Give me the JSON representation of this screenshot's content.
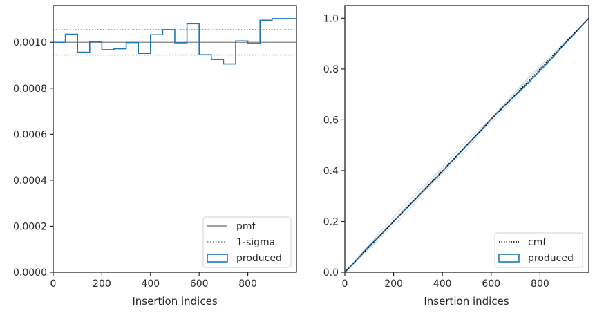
{
  "chart_data": [
    {
      "type": "histogram",
      "xlabel": "Insertion indices",
      "ylabel": "",
      "xlim": [
        0,
        1000
      ],
      "ylim": [
        0,
        0.00116
      ],
      "xticks": [
        "0",
        "200",
        "400",
        "600",
        "800"
      ],
      "yticks": [
        "0.0000",
        "0.0002",
        "0.0004",
        "0.0006",
        "0.0008",
        "0.0010"
      ],
      "bin_edges": [
        0,
        50,
        100,
        150,
        200,
        250,
        300,
        350,
        400,
        450,
        500,
        550,
        600,
        650,
        700,
        750,
        800,
        850,
        900,
        950,
        1000
      ],
      "produced": [
        0.001,
        0.001035,
        0.000957,
        0.001002,
        0.000968,
        0.000972,
        0.000999,
        0.000952,
        0.001033,
        0.001055,
        0.000998,
        0.001081,
        0.000946,
        0.000925,
        0.000906,
        0.001006,
        0.000995,
        0.001096,
        0.001103,
        0.001103
      ],
      "pmf": 0.001,
      "sigma_upper": 0.001055,
      "sigma_lower": 0.000945,
      "legend": [
        "pmf",
        "1-sigma",
        "produced"
      ],
      "legend_position": "lower right",
      "colors": {
        "pmf": "#808080",
        "sigma": "#808080",
        "produced": "#1f77b4"
      }
    },
    {
      "type": "line",
      "xlabel": "Insertion indices",
      "ylabel": "",
      "xlim": [
        0,
        1000
      ],
      "ylim": [
        0,
        1.05
      ],
      "xticks": [
        "0",
        "200",
        "400",
        "600",
        "800"
      ],
      "yticks": [
        "0.0",
        "0.2",
        "0.4",
        "0.6",
        "0.8",
        "1.0"
      ],
      "cmf": {
        "x": [
          0,
          1000
        ],
        "y": [
          0,
          1.0
        ]
      },
      "produced": {
        "x": [
          0,
          50,
          100,
          150,
          200,
          250,
          300,
          350,
          400,
          450,
          500,
          550,
          600,
          650,
          700,
          750,
          800,
          850,
          900,
          950,
          1000
        ],
        "y": [
          0,
          0.05,
          0.1035,
          0.1492,
          0.2002,
          0.2494,
          0.2986,
          0.3485,
          0.3961,
          0.4477,
          0.5005,
          0.5504,
          0.6044,
          0.6517,
          0.698,
          0.7433,
          0.7936,
          0.8433,
          0.8981,
          0.9483,
          1.0
        ]
      },
      "legend": [
        "cmf",
        "produced"
      ],
      "legend_position": "lower right",
      "colors": {
        "cmf": "#000000",
        "produced": "#1f77b4",
        "grey_samples": "#d8d8d8"
      }
    }
  ]
}
